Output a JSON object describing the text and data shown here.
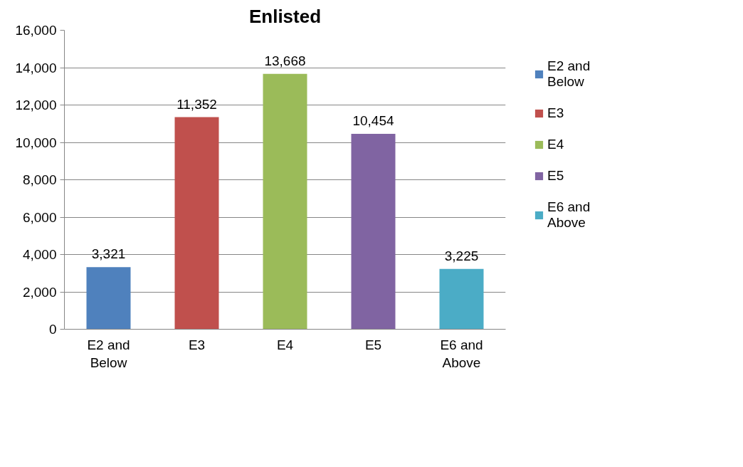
{
  "chart_data": {
    "type": "bar",
    "title": "Enlisted",
    "stacked": true,
    "categories": [
      "E2 and Below",
      "E3",
      "E4",
      "E5",
      "E6 and Above"
    ],
    "series": [
      {
        "name": "E2 and Below",
        "color": "#4f81bd",
        "values": [
          3321,
          null,
          null,
          null,
          null
        ],
        "value_labels": [
          "3,321",
          null,
          null,
          null,
          null
        ]
      },
      {
        "name": "E3",
        "color": "#c0504d",
        "values": [
          null,
          11352,
          null,
          null,
          null
        ],
        "value_labels": [
          null,
          "11,352",
          null,
          null,
          null
        ]
      },
      {
        "name": "E4",
        "color": "#9bbb59",
        "values": [
          null,
          null,
          13668,
          null,
          null
        ],
        "value_labels": [
          null,
          null,
          "13,668",
          null,
          null
        ]
      },
      {
        "name": "E5",
        "color": "#8064a2",
        "values": [
          null,
          null,
          null,
          10454,
          null
        ],
        "value_labels": [
          null,
          null,
          null,
          "10,454",
          null
        ]
      },
      {
        "name": "E6 and Above",
        "color": "#4bacc6",
        "values": [
          null,
          null,
          null,
          null,
          3225
        ],
        "value_labels": [
          null,
          null,
          null,
          null,
          "3,225"
        ]
      }
    ],
    "ylim": [
      0,
      16000
    ],
    "yticks": [
      0,
      {
        "value": 2000,
        "label": "2,000"
      },
      {
        "value": 4000,
        "label": "4,000"
      },
      {
        "value": 6000,
        "label": "6,000"
      },
      {
        "value": 8000,
        "label": "8,000"
      },
      {
        "value": 10000,
        "label": "10,000"
      },
      {
        "value": 12000,
        "label": "12,000"
      },
      {
        "value": 14000,
        "label": "14,000"
      },
      {
        "value": 16000,
        "label": "16,000"
      }
    ],
    "grid": "y",
    "legend": "right"
  }
}
